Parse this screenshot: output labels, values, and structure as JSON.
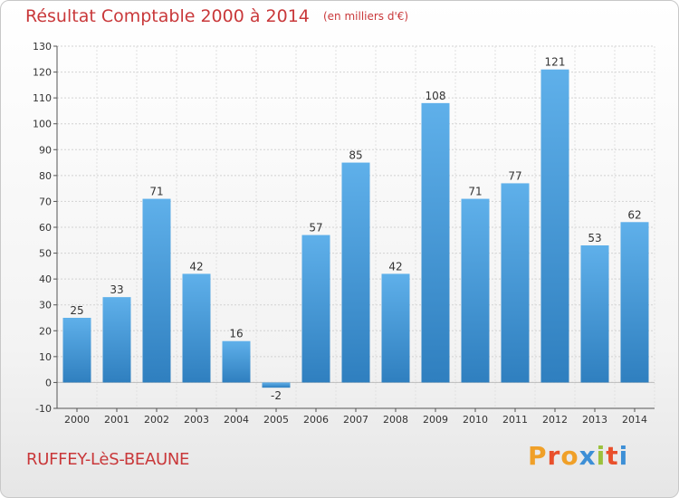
{
  "header": {
    "title": "Résultat Comptable 2000 à 2014",
    "subtitle": "(en milliers d'€)"
  },
  "footer": {
    "commune": "RUFFEY-LèS-BEAUNE",
    "logo_text": "Proxiti"
  },
  "colors": {
    "title": "#c9383a",
    "bar_top": "#5fb0ea",
    "bar_bottom": "#2f7fbf",
    "logo_letters": [
      "#f0a028",
      "#e9502c",
      "#f0a028",
      "#3d8fd6",
      "#9bc13c",
      "#e9502c",
      "#3d8fd6"
    ]
  },
  "chart_data": {
    "type": "bar",
    "categories": [
      "2000",
      "2001",
      "2002",
      "2003",
      "2004",
      "2005",
      "2006",
      "2007",
      "2008",
      "2009",
      "2010",
      "2011",
      "2012",
      "2013",
      "2014"
    ],
    "values": [
      25,
      33,
      71,
      42,
      16,
      -2,
      57,
      85,
      42,
      108,
      71,
      77,
      121,
      53,
      62
    ],
    "title": "Résultat Comptable 2000 à 2014",
    "xlabel": "",
    "ylabel": "",
    "ylim": [
      -10,
      130
    ],
    "yticks": [
      -10,
      0,
      10,
      20,
      30,
      40,
      50,
      60,
      70,
      80,
      90,
      100,
      110,
      120,
      130
    ],
    "grid": true,
    "legend": "none"
  }
}
